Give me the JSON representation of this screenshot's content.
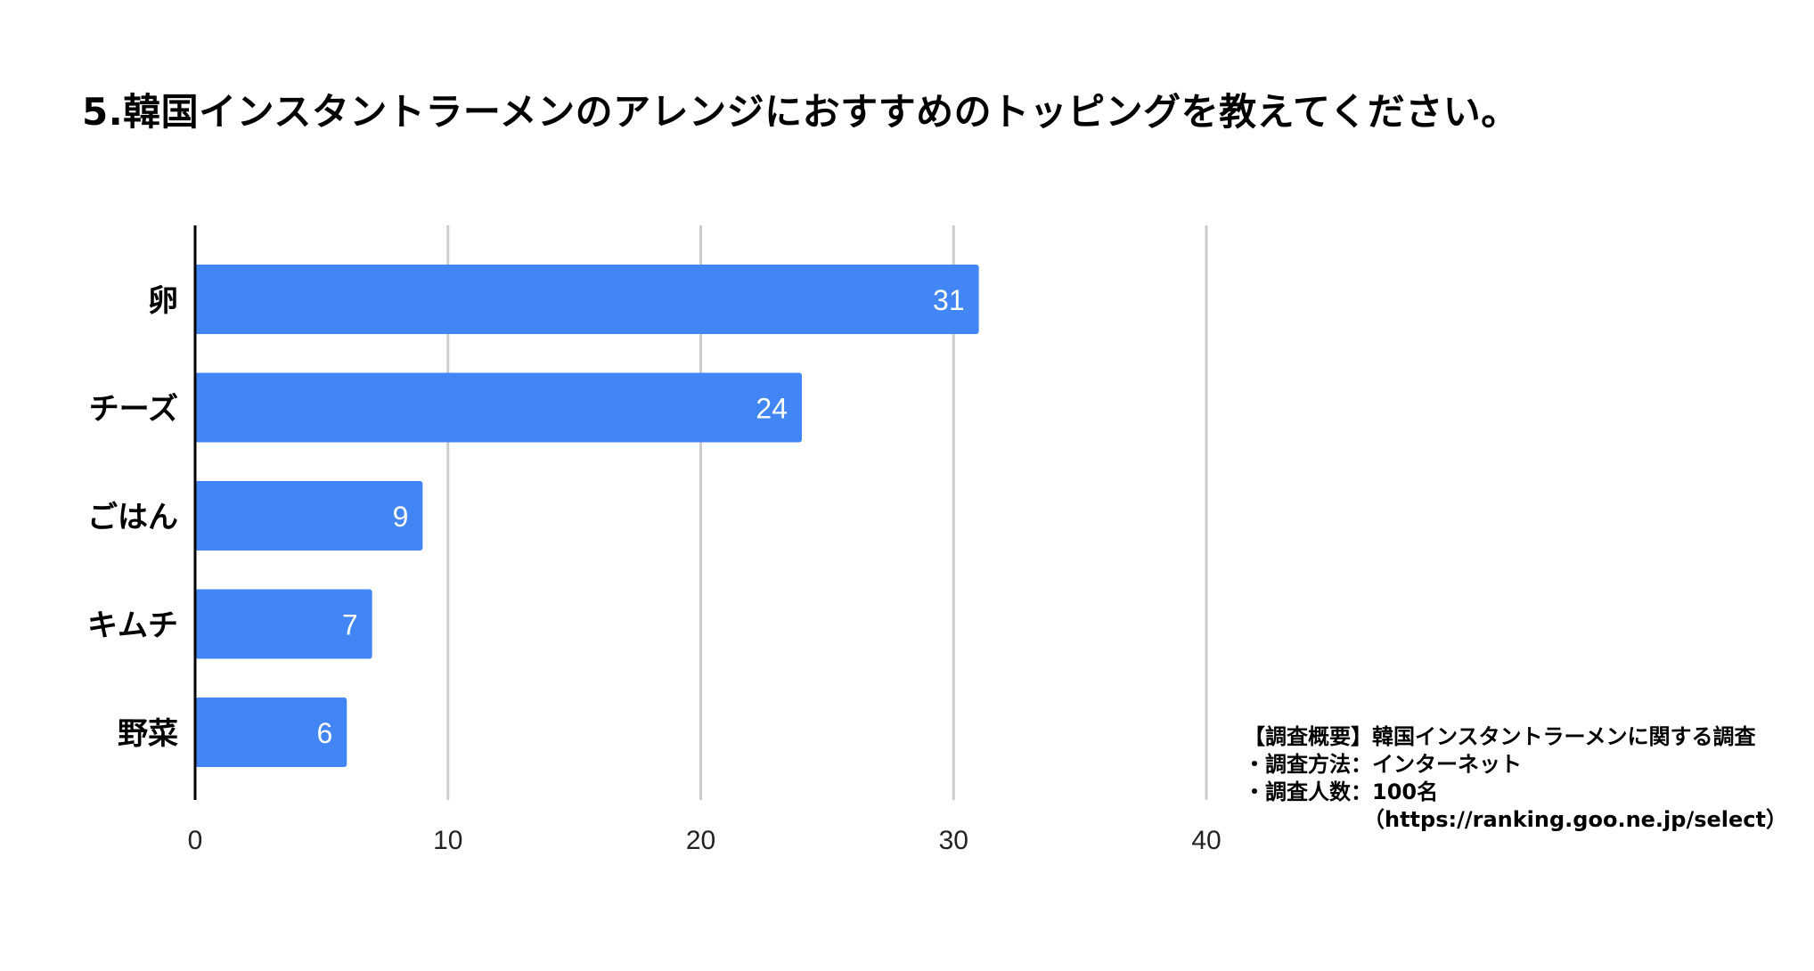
{
  "title": "5.韓国インスタントラーメンのアレンジにおすすめのトッピングを教えてください。",
  "colors": {
    "bar": "#4285f4",
    "grid": "#cccccc",
    "axis": "#000000",
    "value_label": "#ffffff"
  },
  "chart_data": {
    "type": "bar",
    "orientation": "horizontal",
    "categories": [
      "卵",
      "チーズ",
      "ごはん",
      "キムチ",
      "野菜"
    ],
    "values": [
      31,
      24,
      9,
      7,
      6
    ],
    "xlim": [
      0,
      40
    ],
    "xticks": [
      "0",
      "10",
      "20",
      "30",
      "40"
    ],
    "data_labels": [
      "31",
      "24",
      "9",
      "7",
      "6"
    ],
    "grid": true
  },
  "note": {
    "heading": "【調査概要】韓国インスタントラーメンに関する調査",
    "method": "・調査方法：インターネット",
    "respondents": "・調査人数：100名",
    "source": "（https://ranking.goo.ne.jp/select）"
  }
}
